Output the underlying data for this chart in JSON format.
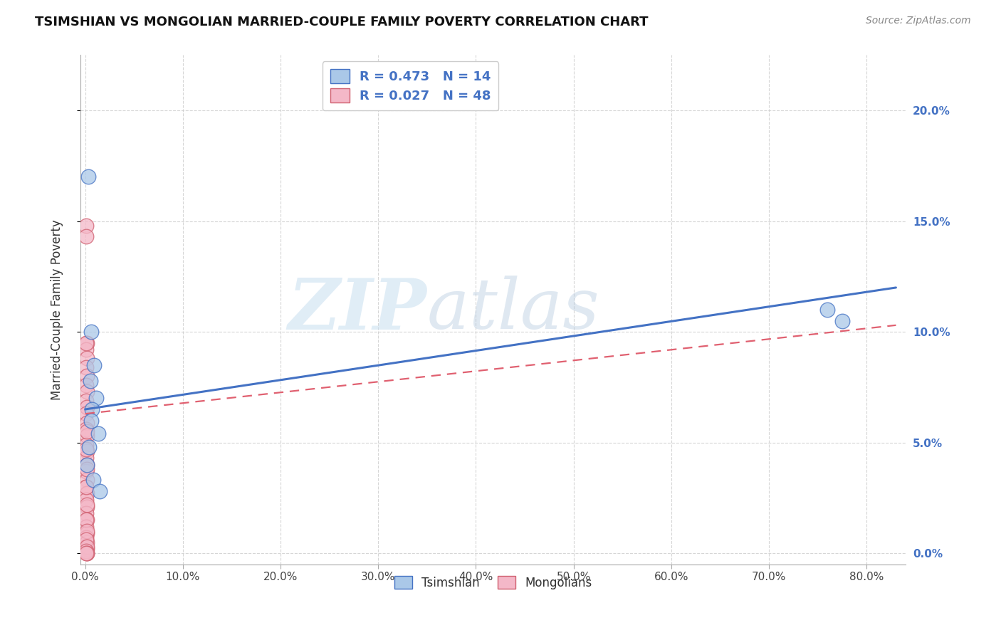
{
  "title": "TSIMSHIAN VS MONGOLIAN MARRIED-COUPLE FAMILY POVERTY CORRELATION CHART",
  "source": "Source: ZipAtlas.com",
  "ylabel": "Married-Couple Family Poverty",
  "xlim": [
    -0.005,
    0.84
  ],
  "ylim": [
    -0.005,
    0.225
  ],
  "x_tick_vals": [
    0.0,
    0.1,
    0.2,
    0.3,
    0.4,
    0.5,
    0.6,
    0.7,
    0.8
  ],
  "x_tick_labels": [
    "0.0%",
    "10.0%",
    "20.0%",
    "30.0%",
    "40.0%",
    "50.0%",
    "60.0%",
    "70.0%",
    "80.0%"
  ],
  "y_tick_vals": [
    0.0,
    0.05,
    0.1,
    0.15,
    0.2
  ],
  "y_tick_labels": [
    "0.0%",
    "5.0%",
    "10.0%",
    "15.0%",
    "20.0%"
  ],
  "tsimshian_x": [
    0.003,
    0.006,
    0.009,
    0.005,
    0.011,
    0.007,
    0.013,
    0.004,
    0.008,
    0.015,
    0.002,
    0.006,
    0.76,
    0.775
  ],
  "tsimshian_y": [
    0.17,
    0.1,
    0.085,
    0.078,
    0.07,
    0.065,
    0.054,
    0.048,
    0.033,
    0.028,
    0.04,
    0.06,
    0.11,
    0.105
  ],
  "mongolian_x": [
    0.001,
    0.001,
    0.002,
    0.001,
    0.002,
    0.001,
    0.002,
    0.001,
    0.002,
    0.001,
    0.002,
    0.001,
    0.002,
    0.001,
    0.002,
    0.001,
    0.002,
    0.001,
    0.002,
    0.001,
    0.002,
    0.001,
    0.002,
    0.001,
    0.002,
    0.001,
    0.002,
    0.001,
    0.002,
    0.001,
    0.002,
    0.001,
    0.002,
    0.001,
    0.002,
    0.001,
    0.002,
    0.001,
    0.002,
    0.001,
    0.002,
    0.001,
    0.002,
    0.001,
    0.002,
    0.001,
    0.002,
    0.001
  ],
  "mongolian_y": [
    0.148,
    0.143,
    0.095,
    0.092,
    0.088,
    0.084,
    0.08,
    0.076,
    0.073,
    0.069,
    0.066,
    0.063,
    0.059,
    0.056,
    0.053,
    0.049,
    0.046,
    0.043,
    0.04,
    0.037,
    0.033,
    0.03,
    0.027,
    0.024,
    0.021,
    0.018,
    0.015,
    0.012,
    0.009,
    0.007,
    0.005,
    0.003,
    0.002,
    0.001,
    0.0,
    0.095,
    0.055,
    0.047,
    0.038,
    0.03,
    0.022,
    0.015,
    0.01,
    0.006,
    0.003,
    0.001,
    0.0,
    0.0
  ],
  "tsimshian_face_color": "#aac8e8",
  "tsimshian_edge_color": "#4472c4",
  "mongolian_face_color": "#f4b8c8",
  "mongolian_edge_color": "#d06070",
  "tsimshian_line_color": "#4472c4",
  "mongolian_line_color": "#e06070",
  "trendline_tsimshian_x0": 0.0,
  "trendline_tsimshian_y0": 0.065,
  "trendline_tsimshian_x1": 0.83,
  "trendline_tsimshian_y1": 0.12,
  "trendline_mongolian_x0": 0.0,
  "trendline_mongolian_y0": 0.063,
  "trendline_mongolian_x1": 0.83,
  "trendline_mongolian_y1": 0.103,
  "R_tsimshian": 0.473,
  "N_tsimshian": 14,
  "R_mongolian": 0.027,
  "N_mongolian": 48,
  "legend_tsimshian": "Tsimshian",
  "legend_mongolian": "Mongolians",
  "watermark_zip": "ZIP",
  "watermark_atlas": "atlas",
  "background_color": "#ffffff",
  "grid_color": "#cccccc",
  "title_fontsize": 13,
  "source_fontsize": 10,
  "tick_fontsize": 11,
  "legend_fontsize": 13,
  "ylabel_fontsize": 12
}
